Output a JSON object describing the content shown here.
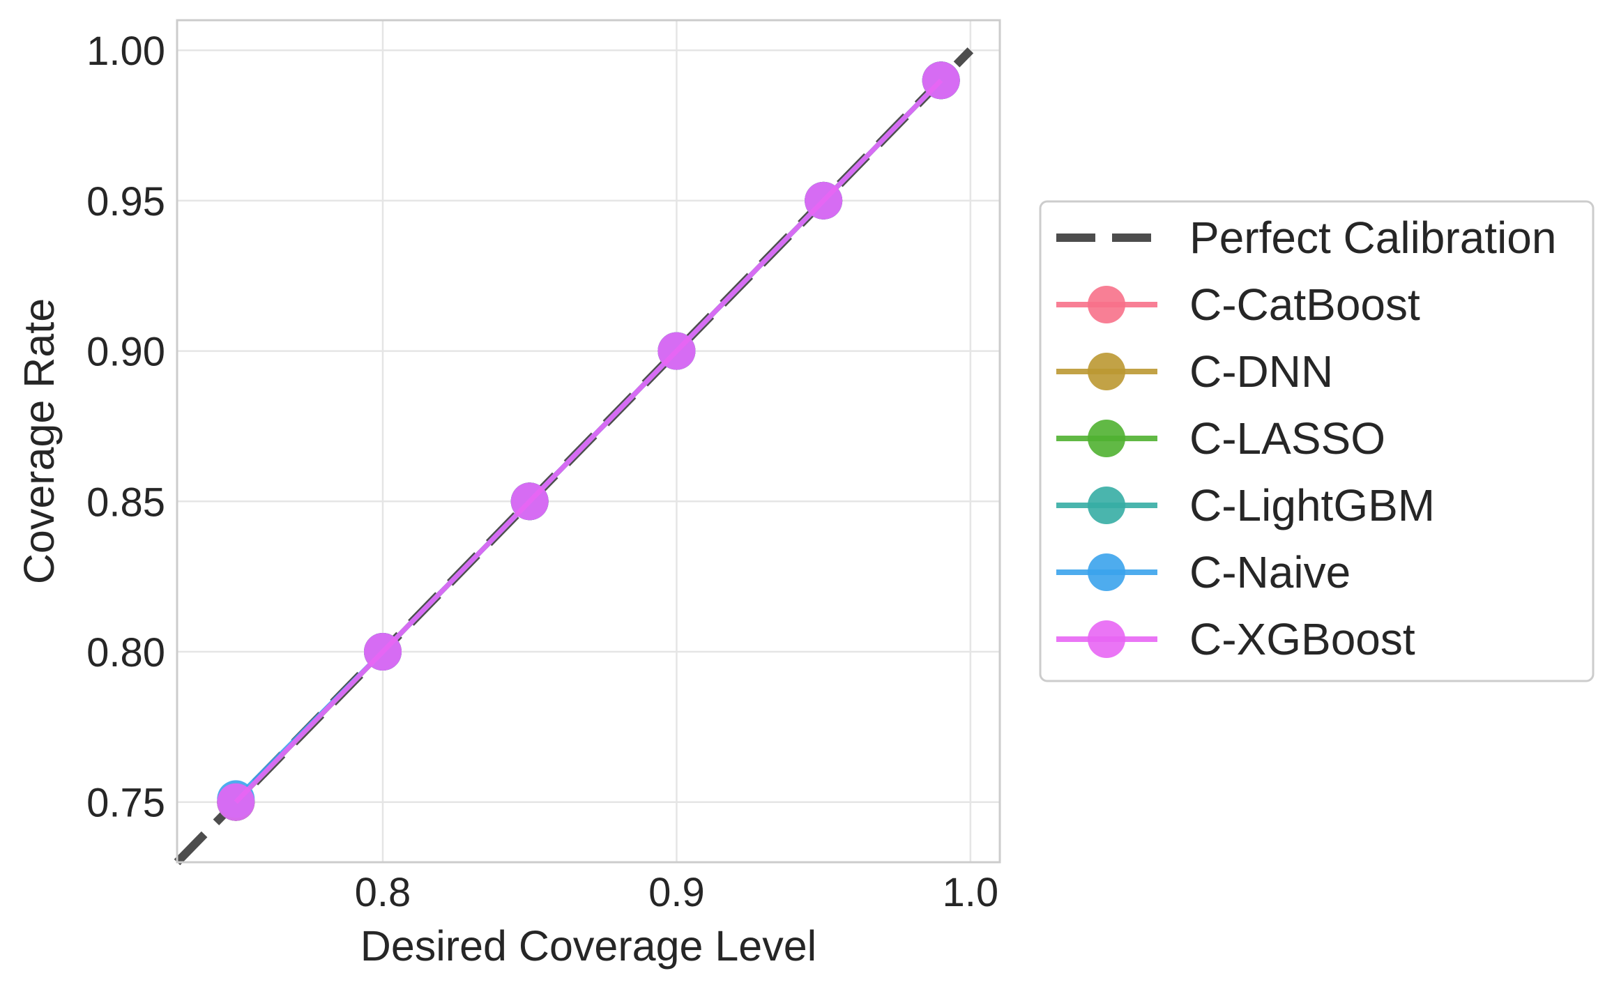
{
  "chart_data": {
    "type": "line",
    "title": "",
    "xlabel": "Desired Coverage Level",
    "ylabel": "Coverage Rate",
    "xlim": [
      0.73,
      1.01
    ],
    "ylim": [
      0.73,
      1.01
    ],
    "x_ticks": [
      {
        "value": 0.8,
        "label": "0.8"
      },
      {
        "value": 0.9,
        "label": "0.9"
      },
      {
        "value": 1.0,
        "label": "1.0"
      }
    ],
    "y_ticks": [
      {
        "value": 0.75,
        "label": "0.75"
      },
      {
        "value": 0.8,
        "label": "0.80"
      },
      {
        "value": 0.85,
        "label": "0.85"
      },
      {
        "value": 0.9,
        "label": "0.90"
      },
      {
        "value": 0.95,
        "label": "0.95"
      },
      {
        "value": 1.0,
        "label": "1.00"
      }
    ],
    "grid": true,
    "legend_position": "outside-right",
    "reference_line": {
      "name": "Perfect Calibration",
      "x": [
        0.73,
        1.0
      ],
      "y": [
        0.73,
        1.0
      ],
      "color": "#4d4d4d",
      "style": "dashed"
    },
    "x": [
      0.75,
      0.8,
      0.85,
      0.9,
      0.95,
      0.99
    ],
    "series": [
      {
        "name": "C-CatBoost",
        "color": "#f77189",
        "values": [
          0.75,
          0.8,
          0.85,
          0.9,
          0.95,
          0.99
        ]
      },
      {
        "name": "C-DNN",
        "color": "#bb9832",
        "values": [
          0.75,
          0.8,
          0.85,
          0.9,
          0.95,
          0.99
        ]
      },
      {
        "name": "C-LASSO",
        "color": "#50b131",
        "values": [
          0.75,
          0.8,
          0.85,
          0.9,
          0.95,
          0.99
        ]
      },
      {
        "name": "C-LightGBM",
        "color": "#36ada4",
        "values": [
          0.75,
          0.8,
          0.85,
          0.9,
          0.95,
          0.99
        ]
      },
      {
        "name": "C-Naive",
        "color": "#3ba3ec",
        "values": [
          0.751,
          0.8,
          0.85,
          0.9,
          0.95,
          0.99
        ]
      },
      {
        "name": "C-XGBoost",
        "color": "#e866f4",
        "values": [
          0.75,
          0.8,
          0.85,
          0.9,
          0.95,
          0.99
        ]
      }
    ]
  }
}
